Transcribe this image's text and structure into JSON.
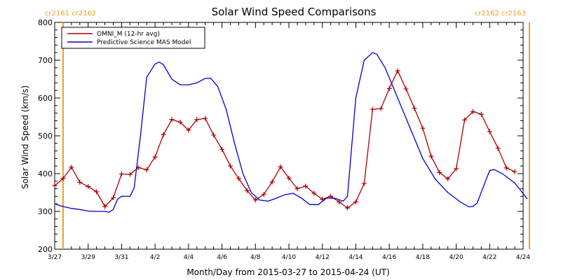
{
  "chart_data": {
    "type": "line",
    "title": "Solar Wind Speed Comparisons",
    "xlabel": "Month/Day from 2015-03-27 to 2015-04-24 (UT)",
    "ylabel": "Solar Wind Speed (km/s)",
    "xlim": [
      "2015-03-27",
      "2015-04-24"
    ],
    "ylim": [
      200,
      800
    ],
    "yticks": [
      200,
      300,
      400,
      500,
      600,
      700,
      800
    ],
    "xticks": [
      {
        "x": "2015-03-27",
        "label": "3/27"
      },
      {
        "x": "2015-03-29",
        "label": "3/29"
      },
      {
        "x": "2015-03-31",
        "label": "3/31"
      },
      {
        "x": "2015-04-02",
        "label": "4/2"
      },
      {
        "x": "2015-04-04",
        "label": "4/4"
      },
      {
        "x": "2015-04-06",
        "label": "4/6"
      },
      {
        "x": "2015-04-08",
        "label": "4/8"
      },
      {
        "x": "2015-04-10",
        "label": "4/10"
      },
      {
        "x": "2015-04-12",
        "label": "4/12"
      },
      {
        "x": "2015-04-14",
        "label": "4/14"
      },
      {
        "x": "2015-04-16",
        "label": "4/16"
      },
      {
        "x": "2015-04-18",
        "label": "4/18"
      },
      {
        "x": "2015-04-20",
        "label": "4/20"
      },
      {
        "x": "2015-04-22",
        "label": "4/22"
      },
      {
        "x": "2015-04-24",
        "label": "4/24"
      }
    ],
    "legend": {
      "placement": "top-left"
    },
    "markers": [
      {
        "x": "2015-03-27 12:00",
        "label": "cr2161 cr2162",
        "color": "#f0a020",
        "side": "left"
      },
      {
        "x": "2015-04-24 09:00",
        "label": "cr2162 cr2163",
        "color": "#f0a020",
        "side": "right"
      }
    ],
    "series": [
      {
        "name": "OMNI_M (12-hr avg)",
        "color": "#aa0000",
        "marker": "plus",
        "points": [
          [
            "2015-03-27 00:00",
            368
          ],
          [
            "2015-03-27 12:00",
            387
          ],
          [
            "2015-03-28 00:00",
            417
          ],
          [
            "2015-03-28 12:00",
            377
          ],
          [
            "2015-03-29 00:00",
            366
          ],
          [
            "2015-03-29 12:00",
            352
          ],
          [
            "2015-03-30 00:00",
            313
          ],
          [
            "2015-03-30 12:00",
            336
          ],
          [
            "2015-03-31 00:00",
            399
          ],
          [
            "2015-03-31 12:00",
            398
          ],
          [
            "2015-04-01 00:00",
            416
          ],
          [
            "2015-04-01 12:00",
            410
          ],
          [
            "2015-04-02 00:00",
            444
          ],
          [
            "2015-04-02 12:00",
            503
          ],
          [
            "2015-04-03 00:00",
            543
          ],
          [
            "2015-04-03 12:00",
            536
          ],
          [
            "2015-04-04 00:00",
            515
          ],
          [
            "2015-04-04 12:00",
            543
          ],
          [
            "2015-04-05 00:00",
            546
          ],
          [
            "2015-04-05 12:00",
            502
          ],
          [
            "2015-04-06 00:00",
            464
          ],
          [
            "2015-04-06 12:00",
            420
          ],
          [
            "2015-04-07 00:00",
            387
          ],
          [
            "2015-04-07 12:00",
            355
          ],
          [
            "2015-04-08 00:00",
            330
          ],
          [
            "2015-04-08 12:00",
            345
          ],
          [
            "2015-04-09 00:00",
            378
          ],
          [
            "2015-04-09 12:00",
            418
          ],
          [
            "2015-04-10 00:00",
            388
          ],
          [
            "2015-04-10 12:00",
            360
          ],
          [
            "2015-04-11 00:00",
            367
          ],
          [
            "2015-04-11 12:00",
            348
          ],
          [
            "2015-04-12 00:00",
            332
          ],
          [
            "2015-04-12 12:00",
            340
          ],
          [
            "2015-04-13 00:00",
            325
          ],
          [
            "2015-04-13 12:00",
            309
          ],
          [
            "2015-04-14 00:00",
            325
          ],
          [
            "2015-04-14 12:00",
            374
          ],
          [
            "2015-04-15 00:00",
            570
          ],
          [
            "2015-04-15 12:00",
            572
          ],
          [
            "2015-04-16 00:00",
            625
          ],
          [
            "2015-04-16 12:00",
            672
          ],
          [
            "2015-04-17 00:00",
            624
          ],
          [
            "2015-04-17 12:00",
            573
          ],
          [
            "2015-04-18 00:00",
            520
          ],
          [
            "2015-04-18 12:00",
            446
          ],
          [
            "2015-04-19 00:00",
            403
          ],
          [
            "2015-04-19 12:00",
            386
          ],
          [
            "2015-04-20 00:00",
            413
          ],
          [
            "2015-04-20 12:00",
            542
          ],
          [
            "2015-04-21 00:00",
            564
          ],
          [
            "2015-04-21 12:00",
            557
          ],
          [
            "2015-04-22 00:00",
            511
          ],
          [
            "2015-04-22 12:00",
            467
          ],
          [
            "2015-04-23 00:00",
            415
          ],
          [
            "2015-04-23 12:00",
            405
          ]
        ]
      },
      {
        "name": "Predictive Science MAS Model",
        "color": "#0000cc",
        "marker": "none",
        "points": [
          [
            "2015-03-27 00:00",
            320
          ],
          [
            "2015-03-27 12:00",
            313
          ],
          [
            "2015-03-28 00:00",
            308
          ],
          [
            "2015-03-28 12:00",
            305
          ],
          [
            "2015-03-29 00:00",
            301
          ],
          [
            "2015-03-29 12:00",
            300
          ],
          [
            "2015-03-30 00:00",
            300
          ],
          [
            "2015-03-30 06:00",
            298
          ],
          [
            "2015-03-30 12:00",
            305
          ],
          [
            "2015-03-30 18:00",
            332
          ],
          [
            "2015-03-31 00:00",
            340
          ],
          [
            "2015-03-31 12:00",
            340
          ],
          [
            "2015-03-31 18:00",
            362
          ],
          [
            "2015-04-01 03:00",
            500
          ],
          [
            "2015-04-01 12:00",
            655
          ],
          [
            "2015-04-02 00:00",
            690
          ],
          [
            "2015-04-02 06:00",
            695
          ],
          [
            "2015-04-02 12:00",
            688
          ],
          [
            "2015-04-03 00:00",
            650
          ],
          [
            "2015-04-03 12:00",
            635
          ],
          [
            "2015-04-04 00:00",
            635
          ],
          [
            "2015-04-04 12:00",
            640
          ],
          [
            "2015-04-05 00:00",
            652
          ],
          [
            "2015-04-05 08:00",
            652
          ],
          [
            "2015-04-05 18:00",
            630
          ],
          [
            "2015-04-06 06:00",
            570
          ],
          [
            "2015-04-06 18:00",
            480
          ],
          [
            "2015-04-07 06:00",
            400
          ],
          [
            "2015-04-07 18:00",
            350
          ],
          [
            "2015-04-08 06:00",
            330
          ],
          [
            "2015-04-08 18:00",
            327
          ],
          [
            "2015-04-09 06:00",
            335
          ],
          [
            "2015-04-09 18:00",
            344
          ],
          [
            "2015-04-10 06:00",
            348
          ],
          [
            "2015-04-10 18:00",
            335
          ],
          [
            "2015-04-11 06:00",
            318
          ],
          [
            "2015-04-11 18:00",
            318
          ],
          [
            "2015-04-12 06:00",
            335
          ],
          [
            "2015-04-12 18:00",
            335
          ],
          [
            "2015-04-13 06:00",
            327
          ],
          [
            "2015-04-13 12:00",
            340
          ],
          [
            "2015-04-14 00:00",
            600
          ],
          [
            "2015-04-14 12:00",
            700
          ],
          [
            "2015-04-15 00:00",
            720
          ],
          [
            "2015-04-15 06:00",
            716
          ],
          [
            "2015-04-15 18:00",
            680
          ],
          [
            "2015-04-16 12:00",
            600
          ],
          [
            "2015-04-17 06:00",
            520
          ],
          [
            "2015-04-18 00:00",
            440
          ],
          [
            "2015-04-18 18:00",
            385
          ],
          [
            "2015-04-19 12:00",
            350
          ],
          [
            "2015-04-20 06:00",
            325
          ],
          [
            "2015-04-20 18:00",
            312
          ],
          [
            "2015-04-21 00:00",
            313
          ],
          [
            "2015-04-21 06:00",
            322
          ],
          [
            "2015-04-21 18:00",
            380
          ],
          [
            "2015-04-22 00:00",
            408
          ],
          [
            "2015-04-22 06:00",
            411
          ],
          [
            "2015-04-22 18:00",
            400
          ],
          [
            "2015-04-23 12:00",
            375
          ],
          [
            "2015-04-24 00:00",
            347
          ],
          [
            "2015-04-24 06:00",
            333
          ]
        ]
      }
    ]
  }
}
